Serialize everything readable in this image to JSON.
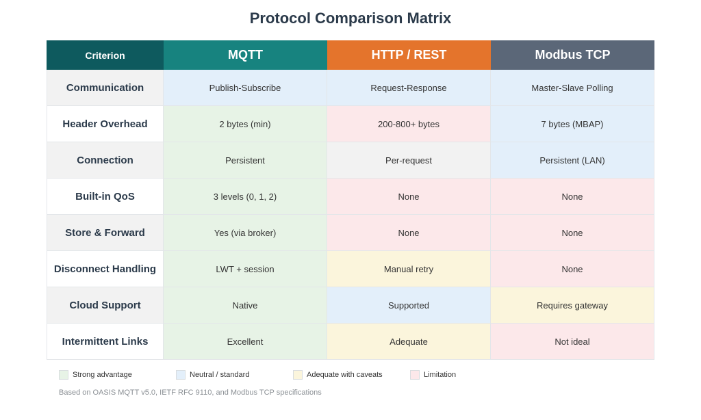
{
  "title": "Protocol Comparison Matrix",
  "colors": {
    "criterion_header": "#0e5a5e",
    "strong": "#e7f3e6",
    "neutral": "#e3effa",
    "caveat": "#fbf5dc",
    "limitation": "#fce8ea",
    "plain": "#f2f2f2"
  },
  "header": {
    "criterion": "Criterion",
    "protocols": [
      {
        "name": "MQTT",
        "color": "#17837f"
      },
      {
        "name": "HTTP / REST",
        "color": "#e4742c"
      },
      {
        "name": "Modbus TCP",
        "color": "#5b6778"
      }
    ]
  },
  "rows": [
    {
      "criterion": "Communication",
      "cells": [
        {
          "text": "Publish-Subscribe",
          "rating": "neutral"
        },
        {
          "text": "Request-Response",
          "rating": "neutral"
        },
        {
          "text": "Master-Slave Polling",
          "rating": "neutral"
        }
      ]
    },
    {
      "criterion": "Header Overhead",
      "cells": [
        {
          "text": "2 bytes (min)",
          "rating": "strong"
        },
        {
          "text": "200-800+ bytes",
          "rating": "limitation"
        },
        {
          "text": "7 bytes (MBAP)",
          "rating": "neutral"
        }
      ]
    },
    {
      "criterion": "Connection",
      "cells": [
        {
          "text": "Persistent",
          "rating": "strong"
        },
        {
          "text": "Per-request",
          "rating": "plain"
        },
        {
          "text": "Persistent (LAN)",
          "rating": "neutral"
        }
      ]
    },
    {
      "criterion": "Built-in QoS",
      "cells": [
        {
          "text": "3 levels (0, 1, 2)",
          "rating": "strong"
        },
        {
          "text": "None",
          "rating": "limitation"
        },
        {
          "text": "None",
          "rating": "limitation"
        }
      ]
    },
    {
      "criterion": "Store & Forward",
      "cells": [
        {
          "text": "Yes (via broker)",
          "rating": "strong"
        },
        {
          "text": "None",
          "rating": "limitation"
        },
        {
          "text": "None",
          "rating": "limitation"
        }
      ]
    },
    {
      "criterion": "Disconnect Handling",
      "cells": [
        {
          "text": "LWT + session",
          "rating": "strong"
        },
        {
          "text": "Manual retry",
          "rating": "caveat"
        },
        {
          "text": "None",
          "rating": "limitation"
        }
      ]
    },
    {
      "criterion": "Cloud Support",
      "cells": [
        {
          "text": "Native",
          "rating": "strong"
        },
        {
          "text": "Supported",
          "rating": "neutral"
        },
        {
          "text": "Requires gateway",
          "rating": "caveat"
        }
      ]
    },
    {
      "criterion": "Intermittent Links",
      "cells": [
        {
          "text": "Excellent",
          "rating": "strong"
        },
        {
          "text": "Adequate",
          "rating": "caveat"
        },
        {
          "text": "Not ideal",
          "rating": "limitation"
        }
      ]
    }
  ],
  "legend": [
    {
      "key": "strong",
      "label": "Strong advantage"
    },
    {
      "key": "neutral",
      "label": "Neutral / standard"
    },
    {
      "key": "caveat",
      "label": "Adequate with caveats"
    },
    {
      "key": "limitation",
      "label": "Limitation"
    }
  ],
  "footnote": "Based on OASIS MQTT v5.0, IETF RFC 9110, and Modbus TCP specifications"
}
